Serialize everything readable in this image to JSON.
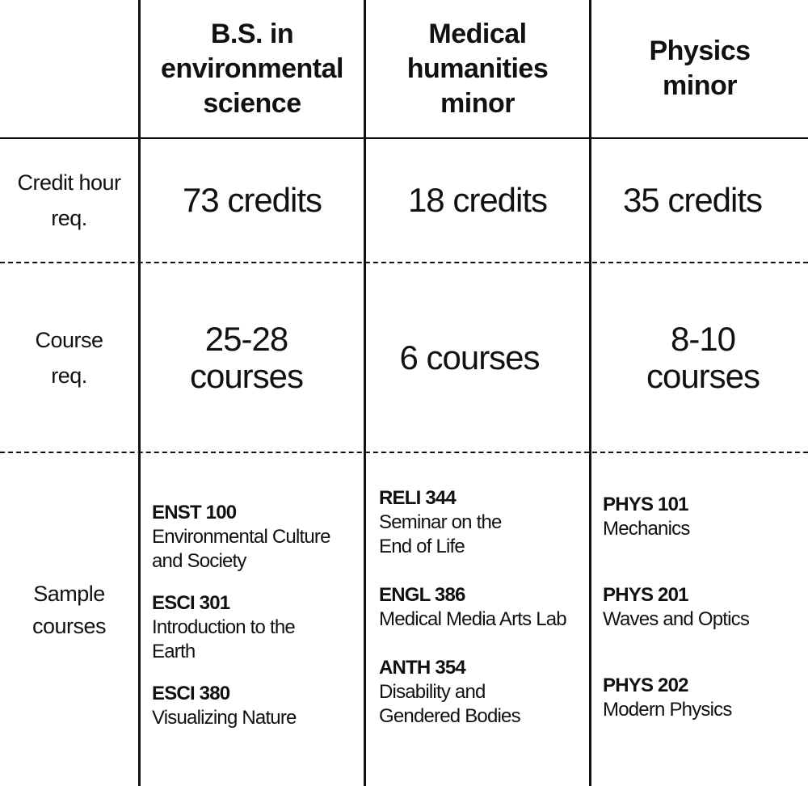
{
  "columns": [
    {
      "header_lines": [
        "B.S. in",
        "environmental",
        "science"
      ]
    },
    {
      "header_lines": [
        "Medical",
        "humanities",
        "minor"
      ]
    },
    {
      "header_lines": [
        "Physics",
        "minor"
      ]
    }
  ],
  "rows": {
    "credit": {
      "label_lines": [
        "Credit hour",
        "req."
      ],
      "values": [
        [
          "73 credits"
        ],
        [
          "18 credits"
        ],
        [
          "35 credits"
        ]
      ]
    },
    "course": {
      "label_lines": [
        "Course",
        "req."
      ],
      "values": [
        [
          "25-28",
          "courses"
        ],
        [
          "6 courses"
        ],
        [
          "8-10",
          "courses"
        ]
      ]
    },
    "sample": {
      "label_lines": [
        "Sample",
        "courses"
      ],
      "courses": [
        [
          {
            "code": "ENST 100",
            "title_lines": [
              "Environmental Culture",
              "and Society"
            ]
          },
          {
            "code": "ESCI 301",
            "title_lines": [
              "Introduction to the",
              "Earth"
            ]
          },
          {
            "code": "ESCI 380",
            "title_lines": [
              "Visualizing Nature"
            ]
          }
        ],
        [
          {
            "code": "RELI 344",
            "title_lines": [
              "Seminar on the",
              "End of Life"
            ]
          },
          {
            "code": "ENGL 386",
            "title_lines": [
              "Medical Media Arts Lab"
            ]
          },
          {
            "code": "ANTH 354",
            "title_lines": [
              "Disability and",
              "Gendered Bodies"
            ]
          }
        ],
        [
          {
            "code": "PHYS 101",
            "title_lines": [
              "Mechanics"
            ]
          },
          {
            "code": "PHYS 201",
            "title_lines": [
              "Waves and Optics"
            ]
          },
          {
            "code": "PHYS 202",
            "title_lines": [
              "Modern Physics"
            ]
          }
        ]
      ]
    }
  }
}
